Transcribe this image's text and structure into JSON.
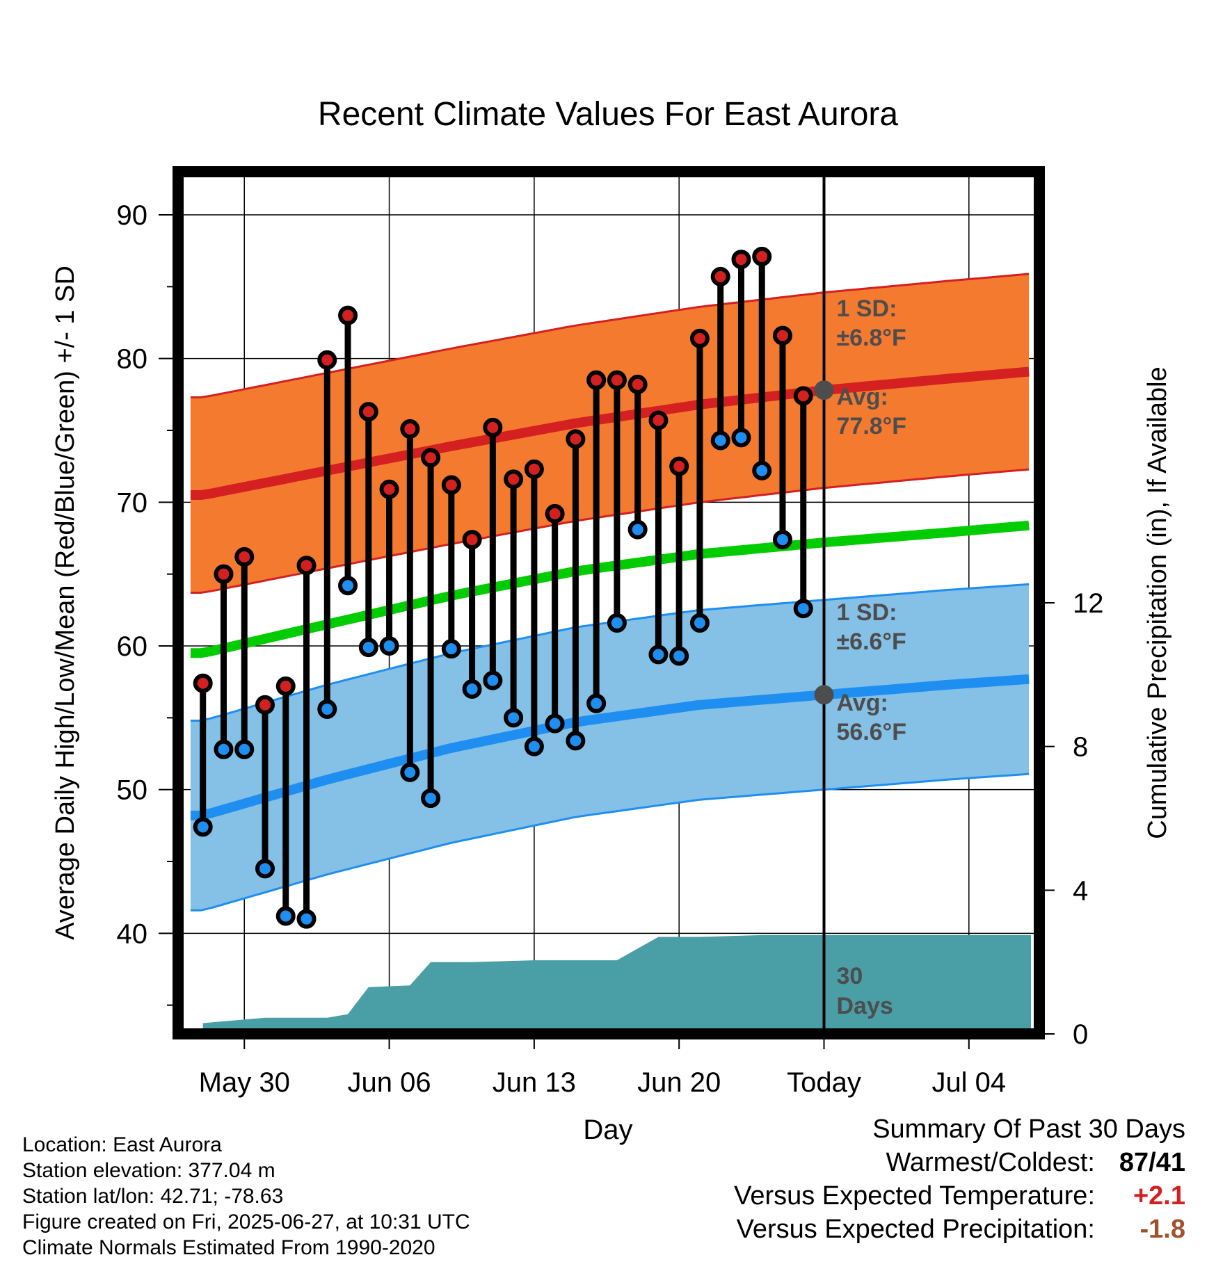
{
  "chart_data": {
    "type": "line",
    "title": "Recent Climate Values For East Aurora",
    "xlabel": "Day",
    "ylabel": "Average Daily High/Low/Mean (Red/Blue/Green) +/- 1 SD",
    "y2label": "Cumulative Precipitation (in), If Available",
    "ylim": [
      33,
      93
    ],
    "y2lim": [
      0,
      24
    ],
    "yticks": [
      40,
      50,
      60,
      70,
      80,
      90
    ],
    "y2ticks": [
      0,
      4,
      8,
      12
    ],
    "xlim": [
      -3.2,
      38.4
    ],
    "xticks": [
      {
        "day": 0,
        "label": "May 30"
      },
      {
        "day": 7,
        "label": "Jun 06"
      },
      {
        "day": 14,
        "label": "Jun 13"
      },
      {
        "day": 21,
        "label": "Jun 20"
      },
      {
        "day": 28,
        "label": "Today"
      },
      {
        "day": 35,
        "label": "Jul 04"
      }
    ],
    "today_day": 28,
    "observed": {
      "days": [
        -2,
        -1,
        0,
        1,
        2,
        3,
        4,
        5,
        6,
        7,
        8,
        9,
        10,
        11,
        12,
        13,
        14,
        15,
        16,
        17,
        18,
        19,
        20,
        21,
        22,
        23,
        24,
        25,
        26,
        27
      ],
      "highs": [
        57.4,
        65.0,
        66.2,
        55.9,
        57.2,
        65.6,
        79.9,
        83.0,
        76.3,
        70.9,
        75.1,
        73.1,
        71.2,
        67.4,
        75.2,
        71.6,
        72.3,
        69.2,
        74.4,
        78.5,
        78.5,
        78.2,
        75.7,
        72.5,
        81.4,
        85.7,
        86.9,
        87.1,
        81.6,
        77.4
      ],
      "lows": [
        47.4,
        52.8,
        52.8,
        44.5,
        41.2,
        41.0,
        55.6,
        64.2,
        59.9,
        60.0,
        51.2,
        49.4,
        59.8,
        57.0,
        57.6,
        55.0,
        53.0,
        54.6,
        53.4,
        56.0,
        61.6,
        68.1,
        59.4,
        59.3,
        61.6,
        74.3,
        74.5,
        72.2,
        67.4,
        62.6
      ]
    },
    "normals": {
      "days": [
        -2,
        4,
        10,
        16,
        22,
        28,
        34,
        38
      ],
      "high_avg": [
        70.5,
        72.2,
        73.9,
        75.5,
        76.8,
        77.8,
        78.6,
        79.1
      ],
      "low_avg": [
        48.2,
        50.7,
        52.9,
        54.7,
        55.9,
        56.6,
        57.3,
        57.7
      ],
      "mean_avg": [
        59.5,
        61.5,
        63.5,
        65.2,
        66.4,
        67.2,
        67.9,
        68.4
      ],
      "high_sd": 6.8,
      "low_sd": 6.6
    },
    "precip_cumulative": {
      "days": [
        -2,
        -1,
        1,
        4,
        5,
        6,
        8,
        9,
        11,
        14,
        18,
        20,
        22,
        25,
        28,
        38
      ],
      "values": [
        0.3,
        0.35,
        0.45,
        0.45,
        0.55,
        1.3,
        1.35,
        2.0,
        2.0,
        2.05,
        2.05,
        2.7,
        2.7,
        2.75,
        2.75,
        2.75
      ]
    },
    "annotations": {
      "high_sd": {
        "line1": "1 SD:",
        "line2": "±6.8°F"
      },
      "high_avg": {
        "line1": "Avg:",
        "line2": "77.8°F"
      },
      "low_sd": {
        "line1": "1 SD:",
        "line2": "±6.6°F"
      },
      "low_avg": {
        "line1": "Avg:",
        "line2": "56.6°F"
      },
      "precip_period": {
        "line1": "30",
        "line2": "Days"
      }
    },
    "colors": {
      "high_band": "#f47a30",
      "high_line": "#d42020",
      "low_band": "#85c0e6",
      "low_line": "#1e8ff0",
      "mean_line": "#00cc00",
      "precip": "#4a9ea6",
      "high_marker": "#d42020",
      "low_marker": "#1e8ff0",
      "today_marker": "#4d4d4d",
      "anno_text": "#4d4d4d"
    }
  },
  "info": {
    "location": "Location: East Aurora",
    "elevation": "Station elevation: 377.04 m",
    "latlon": "Station lat/lon: 42.71; -78.63",
    "created": "Figure created on Fri, 2025-06-27, at 10:31 UTC",
    "normals": "Climate Normals Estimated From 1990-2020"
  },
  "summary": {
    "title": "Summary Of Past 30 Days",
    "warm_cold_label": "Warmest/Coldest:",
    "warm_cold_value": "87/41",
    "temp_label": "Versus Expected Temperature:",
    "temp_value": "+2.1",
    "temp_color": "#d42020",
    "precip_label": "Versus Expected Precipitation:",
    "precip_value": "-1.8",
    "precip_color": "#a0522d"
  }
}
